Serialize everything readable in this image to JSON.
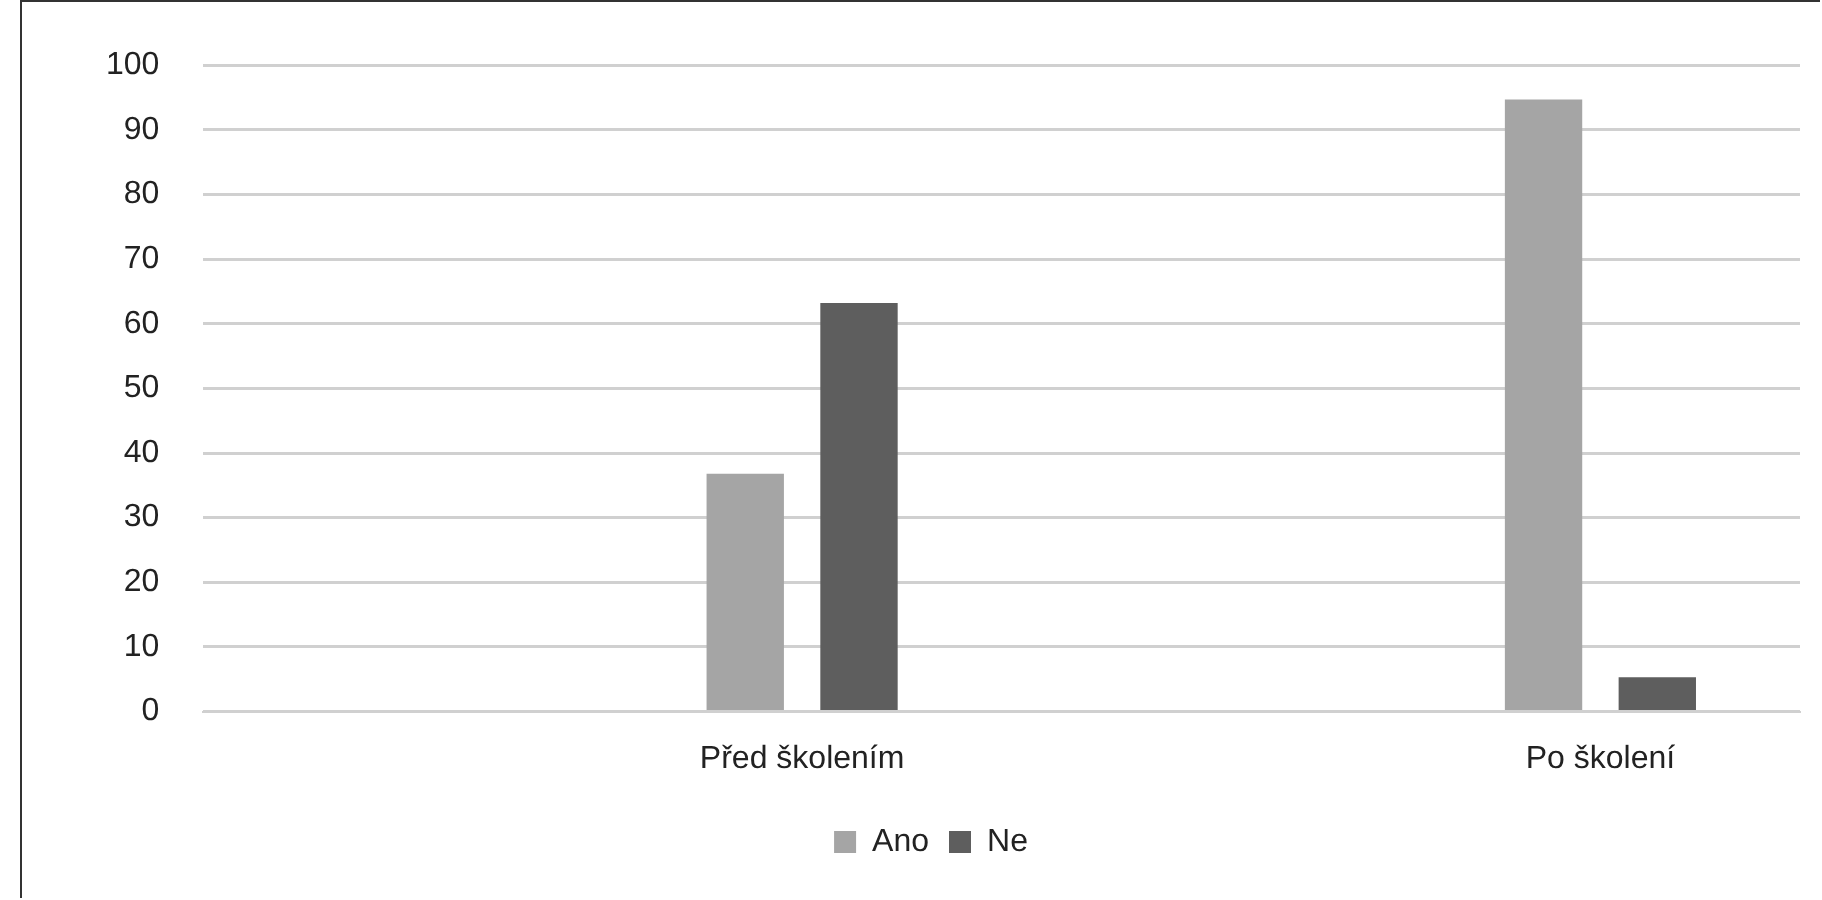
{
  "chart_data": {
    "type": "bar",
    "categories": [
      null,
      "Před školením",
      null,
      "Po školení"
    ],
    "series": [
      {
        "name": "Ano",
        "color": "#a5a5a5",
        "values": [
          null,
          36.8,
          null,
          94.7
        ]
      },
      {
        "name": "Ne",
        "color": "#5e5e5e",
        "values": [
          null,
          63.2,
          null,
          5.3
        ]
      }
    ],
    "ylim": [
      0,
      100
    ],
    "yticks": [
      0,
      10,
      20,
      30,
      40,
      50,
      60,
      70,
      80,
      90,
      100
    ],
    "grid": "y",
    "legend": "bottom"
  }
}
